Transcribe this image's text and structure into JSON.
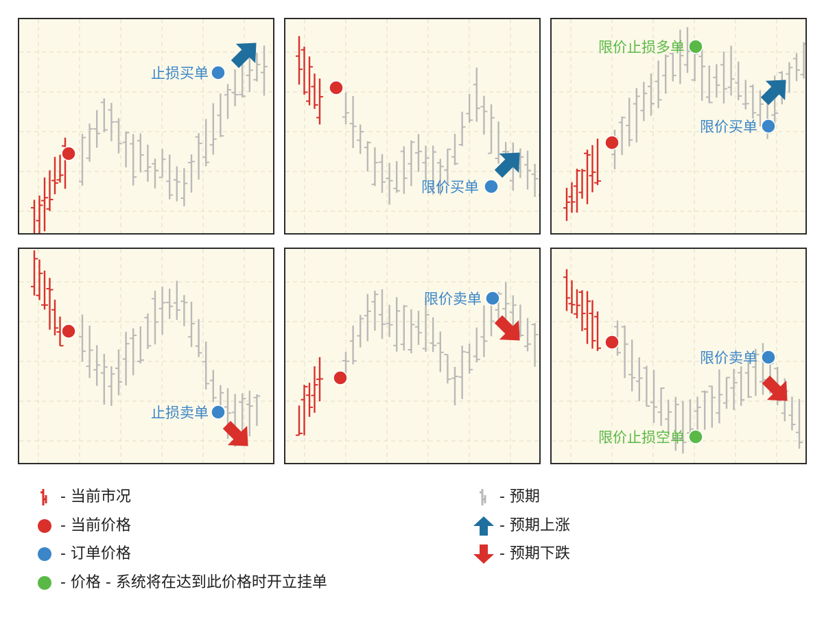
{
  "colors": {
    "red": "#d9302c",
    "blue": "#3a86c8",
    "green": "#5ab946",
    "gray": "#b9b9b9",
    "arrow_up": "#1f6f9e",
    "arrow_down": "#d9302c",
    "panel_bg": "#fdf9e8",
    "grid": "#e2dcc4"
  },
  "panels": [
    {
      "id": "buy-stop",
      "label": "止损买单",
      "label_color": "blue",
      "arrow": "up",
      "price_point": "current",
      "trend": "up-after-dip"
    },
    {
      "id": "buy-limit",
      "label": "限价买单",
      "label_color": "blue",
      "arrow": "up",
      "price_point": "current",
      "trend": "down-then-up"
    },
    {
      "id": "buy-stop-limit",
      "label": "限价止损多单",
      "second_label": "限价买单",
      "label_color": "green",
      "second_label_color": "blue",
      "arrow": "up",
      "price_point": "current",
      "trend": "up-then-pullback"
    },
    {
      "id": "sell-stop",
      "label": "止损卖单",
      "label_color": "blue",
      "arrow": "down",
      "price_point": "current",
      "trend": "down"
    },
    {
      "id": "sell-limit",
      "label": "限价卖单",
      "label_color": "blue",
      "arrow": "down",
      "price_point": "current",
      "trend": "up-then-down"
    },
    {
      "id": "sell-stop-limit",
      "label": "限价卖单",
      "second_label": "限价止损空单",
      "label_color": "blue",
      "second_label_color": "green",
      "arrow": "down",
      "price_point": "current",
      "trend": "down-then-bounce"
    }
  ],
  "legend": {
    "items": [
      {
        "icon": "red-bars-icon",
        "text": "- 当前市况"
      },
      {
        "icon": "red-dot-icon",
        "text": "- 当前价格"
      },
      {
        "icon": "blue-dot-icon",
        "text": "- 订单价格"
      },
      {
        "icon": "green-dot-icon",
        "text": "- 价格 - 系统将在达到此价格时开立挂单"
      },
      {
        "icon": "gray-bars-icon",
        "text": "- 预期"
      },
      {
        "icon": "up-arrow-icon",
        "text": "- 预期上涨"
      },
      {
        "icon": "down-arrow-icon",
        "text": "- 预期下跌"
      }
    ]
  }
}
